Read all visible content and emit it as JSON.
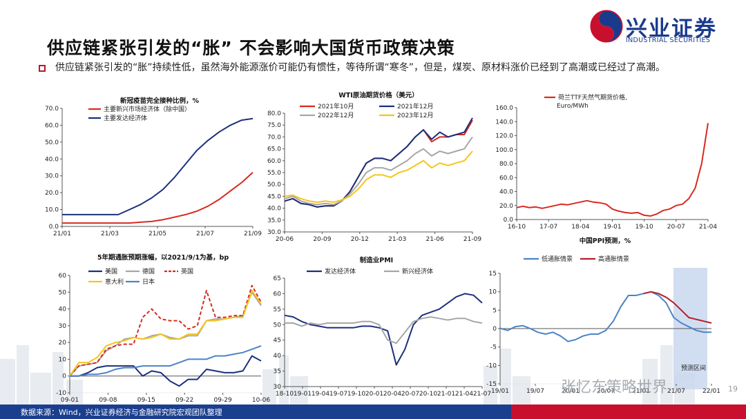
{
  "title": "供应链紧张引发的“胀” 不会影响大国货币政策决策",
  "bullet": "供应链紧张引发的“胀”持续性低，虽然海外能源涨价可能仍有惯性，等待所谓“寒冬”，但是，煤炭、原材料涨价已经到了高潮或已经过了高潮。",
  "logo": {
    "name": "兴业证券",
    "sub": "INDUSTRIAL SECURITIES"
  },
  "footer": "数据来源：Wind，兴业证券经济与金融研究院宏观团队整理",
  "watermark": "张忆东策略世界",
  "page_number": "19",
  "colors": {
    "red": "#d7291f",
    "navy": "#1b2f7c",
    "blue": "#4a83c6",
    "gray": "#a6a6a6",
    "yellow": "#f5c518",
    "darkred": "#b71c2a",
    "shade": "#c9d8ee"
  },
  "chart_data": [
    {
      "type": "line",
      "title": "新冠疫苗完全接种比例，%",
      "x_ticks": [
        "21/01",
        "21/03",
        "21/05",
        "21/07",
        "21/09"
      ],
      "y_ticks": [
        "0.0",
        "10.0",
        "20.0",
        "30.0",
        "40.0",
        "50.0",
        "60.0",
        "70.0"
      ],
      "ylim": [
        0,
        70
      ],
      "series": [
        {
          "name": "主要新兴市场经济体（除中国）",
          "values": [
            2,
            2,
            2,
            2,
            2,
            2,
            2,
            2.5,
            3,
            4,
            5.5,
            7,
            9,
            12,
            16,
            21,
            26,
            32
          ]
        },
        {
          "name": "主要发达经济体",
          "values": [
            7,
            7,
            7,
            7,
            7,
            7,
            10,
            13,
            17,
            22,
            29,
            37,
            45,
            51,
            56,
            60,
            63,
            64
          ]
        }
      ]
    },
    {
      "type": "line",
      "title": "WTI原油期货价格（美元）",
      "x_ticks": [
        "20-06",
        "20-09",
        "20-12",
        "21-03",
        "21-06",
        "21-09"
      ],
      "y_ticks": [
        "30.0",
        "35.0",
        "40.0",
        "45.0",
        "50.0",
        "55.0",
        "60.0",
        "65.0",
        "70.0",
        "75.0",
        "80.0"
      ],
      "ylim": [
        30,
        80
      ],
      "series": [
        {
          "name": "2021年10月",
          "values": [
            43,
            44,
            42,
            41.5,
            40.5,
            41,
            41,
            43,
            47,
            53,
            59,
            61,
            61,
            60,
            63,
            66,
            70,
            73,
            68,
            70,
            70,
            71,
            71,
            77
          ]
        },
        {
          "name": "2021年12月",
          "values": [
            43,
            44,
            42,
            41.5,
            40.5,
            41,
            41,
            43,
            47,
            53,
            59,
            61,
            61,
            60,
            63,
            66,
            70,
            73,
            69,
            72,
            70,
            71,
            72,
            78
          ]
        },
        {
          "name": "2022年12月",
          "values": [
            44,
            45,
            43,
            42,
            41.5,
            42,
            41.5,
            43,
            46,
            50,
            55,
            57,
            57,
            56,
            58,
            60,
            63,
            65,
            62,
            64,
            63,
            64,
            65,
            70
          ]
        },
        {
          "name": "2023年12月",
          "values": [
            45,
            45.5,
            44,
            43,
            42.5,
            43,
            42.5,
            43.5,
            45,
            48,
            52,
            54,
            54,
            53,
            55,
            56,
            58,
            60,
            57,
            59,
            58,
            59,
            60,
            64
          ]
        }
      ]
    },
    {
      "type": "line",
      "title": "荷兰TTF天然气期货价格，Euro/MWh",
      "x_ticks": [
        "16-10",
        "17-07",
        "18-04",
        "19-01",
        "19-10",
        "20-07",
        "21-04"
      ],
      "y_ticks": [
        "0.0",
        "20.0",
        "40.0",
        "60.0",
        "80.0",
        "100.0",
        "120.0",
        "140.0",
        "160.0"
      ],
      "ylim": [
        0,
        160
      ],
      "series": [
        {
          "name": "荷兰TTF天然气期货价格",
          "values": [
            17,
            19,
            17,
            18,
            16,
            18,
            20,
            22,
            21,
            23,
            25,
            27,
            25,
            24,
            22,
            15,
            12,
            10,
            9,
            10,
            6,
            5,
            8,
            13,
            15,
            20,
            22,
            30,
            45,
            80,
            138
          ]
        }
      ]
    },
    {
      "type": "line",
      "title": "5年期通胀预期涨幅，以2021/9/1为基，bp",
      "x_ticks": [
        "09-01",
        "09-08",
        "09-15",
        "09-22",
        "09-29",
        "10-06"
      ],
      "y_ticks": [
        "-10",
        "0",
        "10",
        "20",
        "30",
        "40",
        "50",
        "60"
      ],
      "ylim": [
        -10,
        60
      ],
      "series": [
        {
          "name": "美国",
          "values": [
            0,
            0,
            2,
            5,
            6,
            6,
            6,
            6,
            0,
            3,
            2,
            -3,
            -6,
            -2,
            -2,
            4,
            3,
            2,
            2,
            3,
            12,
            9
          ]
        },
        {
          "name": "德国",
          "values": [
            0,
            6,
            7,
            8,
            15,
            18,
            22,
            23,
            22,
            24,
            25,
            23,
            22,
            24,
            24,
            33,
            34,
            34,
            35,
            36,
            50,
            42
          ]
        },
        {
          "name": "英国",
          "values": [
            0,
            6,
            7,
            8,
            16,
            18,
            19,
            19,
            35,
            40,
            34,
            33,
            33,
            28,
            30,
            51,
            35,
            35,
            36,
            36,
            54,
            44
          ]
        },
        {
          "name": "意大利",
          "values": [
            0,
            8,
            8,
            11,
            18,
            20,
            21,
            23,
            22,
            23,
            25,
            22,
            22,
            25,
            25,
            33,
            33,
            34,
            35,
            35,
            51,
            43
          ]
        },
        {
          "name": "日本",
          "values": [
            0,
            0,
            1,
            1,
            2,
            4,
            5,
            5,
            6,
            6,
            6,
            6,
            8,
            10,
            10,
            10,
            12,
            12,
            13,
            14,
            16,
            18
          ]
        }
      ]
    },
    {
      "type": "line",
      "title": "制造业PMI",
      "x_ticks": [
        "18-10",
        "19-01",
        "19-04",
        "19-07",
        "19-10",
        "20-01",
        "20-04",
        "20-07",
        "20-10",
        "21-01",
        "21-04",
        "21-07"
      ],
      "y_ticks": [
        "30",
        "35",
        "40",
        "45",
        "50",
        "55",
        "60",
        "65"
      ],
      "ylim": [
        30,
        65
      ],
      "series": [
        {
          "name": "发达经济体",
          "values": [
            53,
            52.5,
            51,
            50,
            49.5,
            49,
            49,
            49,
            49,
            49.5,
            49.5,
            49,
            48,
            37,
            42,
            50,
            53,
            54,
            55,
            57,
            59,
            60,
            59.5,
            57
          ]
        },
        {
          "name": "新兴经济体",
          "values": [
            50.5,
            50.5,
            49.5,
            50.5,
            50,
            50.5,
            50.5,
            50.5,
            50.5,
            51,
            51,
            50,
            45,
            44,
            47.5,
            51,
            52,
            52.5,
            52,
            51.5,
            52,
            52,
            51,
            50.5
          ]
        }
      ]
    },
    {
      "type": "line",
      "title": "中国PPI预测，%",
      "x_ticks": [
        "19/01",
        "19/07",
        "20/01",
        "20/07",
        "21/01",
        "21/07",
        "22/01"
      ],
      "y_ticks": [
        "-15",
        "-10",
        "-5",
        "0",
        "5",
        "10",
        "15"
      ],
      "ylim": [
        -15,
        15
      ],
      "annotation": "预测区间",
      "series": [
        {
          "name": "低通胀情景",
          "values": [
            0.1,
            -0.5,
            0.5,
            0.8,
            0,
            -1,
            -1.5,
            -1,
            -2,
            -3.5,
            -3,
            -2,
            -1.5,
            -1.5,
            -0.5,
            2,
            6,
            9,
            9,
            9.5,
            10,
            9,
            7,
            3,
            1.5,
            0.5,
            -0.5,
            -1,
            -1
          ]
        },
        {
          "name": "高通胀情景",
          "values": [
            null,
            null,
            null,
            null,
            null,
            null,
            null,
            null,
            null,
            null,
            null,
            null,
            null,
            null,
            null,
            null,
            null,
            null,
            null,
            9.5,
            10,
            9.5,
            8.5,
            7,
            5,
            3,
            2.5,
            2,
            1.5
          ]
        }
      ]
    }
  ]
}
